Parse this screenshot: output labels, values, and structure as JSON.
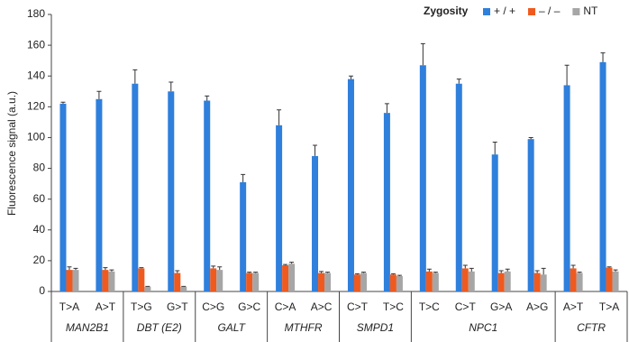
{
  "chart_data": {
    "type": "bar",
    "y_label": "Fluorescence signal (a.u.)",
    "legend_title": "Zygosity",
    "legend_position": "top-right",
    "groups": [
      {
        "name": "MAN2B1",
        "categories": [
          "T>A",
          "A>T"
        ]
      },
      {
        "name": "DBT (E2)",
        "categories": [
          "T>G",
          "G>T"
        ]
      },
      {
        "name": "GALT",
        "categories": [
          "C>G",
          "G>C"
        ]
      },
      {
        "name": "MTHFR",
        "categories": [
          "C>A",
          "A>C"
        ]
      },
      {
        "name": "SMPD1",
        "categories": [
          "C>T",
          "T>C"
        ]
      },
      {
        "name": "NPC1",
        "categories": [
          "T>C",
          "C>T",
          "G>A",
          "A>G"
        ]
      },
      {
        "name": "CFTR",
        "categories": [
          "A>T",
          "T>A"
        ]
      }
    ],
    "series": [
      {
        "name": "+ / +",
        "color": "#2f7fdc",
        "values": [
          122,
          125,
          135,
          130,
          124,
          71,
          108,
          88,
          138,
          116,
          147,
          135,
          89,
          99,
          134,
          149
        ],
        "errors": [
          1,
          5,
          9,
          6,
          3,
          5,
          10,
          7,
          2,
          6,
          14,
          3,
          8,
          1,
          13,
          6
        ]
      },
      {
        "name": "– / –",
        "color": "#f05a1e",
        "values": [
          14,
          14,
          15,
          12,
          15,
          12,
          17,
          12,
          11,
          11,
          13,
          15,
          12,
          12,
          15,
          15.5
        ],
        "errors": [
          2,
          1.5,
          0.5,
          1.5,
          1.5,
          0.5,
          0.5,
          1,
          0.5,
          0.5,
          1.5,
          2,
          1.5,
          1.5,
          2,
          0.5
        ]
      },
      {
        "name": "NT",
        "color": "#a6a6a6",
        "values": [
          14,
          13,
          3,
          3,
          14,
          12,
          18,
          12,
          12,
          10,
          12,
          13,
          13,
          11,
          12,
          13
        ],
        "errors": [
          1,
          1,
          0.3,
          0.3,
          2,
          0.5,
          1,
          0.5,
          0.5,
          0.5,
          0.5,
          2,
          1.5,
          4,
          0.5,
          1
        ]
      }
    ],
    "ylim": [
      0,
      180
    ],
    "yticks": [
      0,
      20,
      40,
      60,
      80,
      100,
      120,
      140,
      160,
      180
    ]
  }
}
